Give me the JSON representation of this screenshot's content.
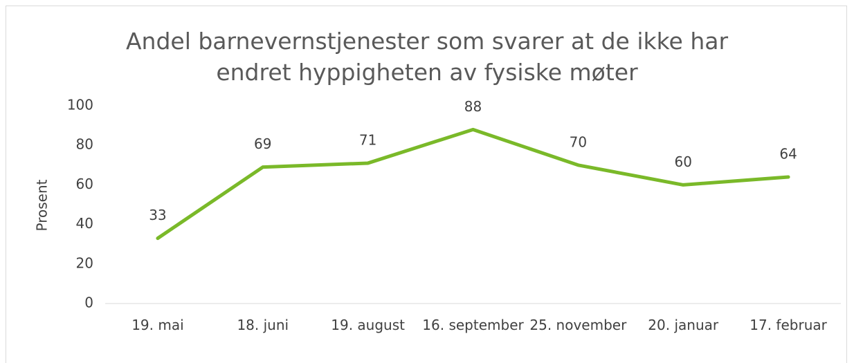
{
  "chart_data": {
    "type": "line",
    "title": "Andel barnevernstjenester som svarer at de ikke har endret hyppigheten av fysiske møter",
    "y_label": "Prosent",
    "categories": [
      "19. mai",
      "18. juni",
      "19. august",
      "16. september",
      "25. november",
      "20. januar",
      "17. februar"
    ],
    "series": [
      {
        "name": "Andel",
        "color": "#7ab929",
        "values": [
          33,
          69,
          71,
          88,
          70,
          60,
          64
        ]
      }
    ],
    "ylim": [
      0,
      100
    ],
    "yticks": [
      0,
      20,
      40,
      60,
      80,
      100
    ],
    "grid": false,
    "legend": false
  }
}
